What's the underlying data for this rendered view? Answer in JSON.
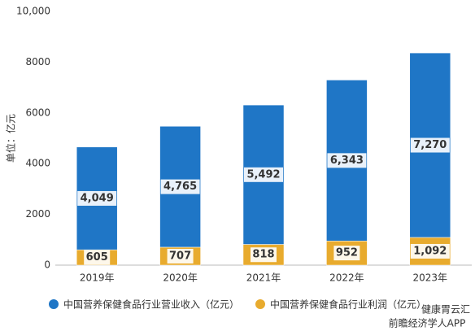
{
  "chart_data": {
    "type": "stacked-bar",
    "y_label": "单位：亿元",
    "categories": [
      "2019年",
      "2020年",
      "2021年",
      "2022年",
      "2023年"
    ],
    "series": [
      {
        "name": "中国营养保健食品行业营业收入（亿元）",
        "color": "#1f76c6",
        "values": [
          4049,
          4765,
          5492,
          6343,
          7270
        ],
        "value_labels": [
          "4,049",
          "4,765",
          "5,492",
          "6,343",
          "7,270"
        ]
      },
      {
        "name": "中国营养保健食品行业利润（亿元）",
        "color": "#e8ab2e",
        "values": [
          605,
          707,
          818,
          952,
          1092
        ],
        "value_labels": [
          "605",
          "707",
          "818",
          "952",
          "1,092"
        ]
      }
    ],
    "ylim": [
      0,
      10000
    ],
    "yticks": [
      0,
      2000,
      4000,
      6000,
      8000,
      {
        "value": 10000,
        "label": "10,000"
      }
    ],
    "grid": false,
    "legend": "bottom",
    "annotations": [
      "健康胃云汇",
      "前瞻经济学人APP"
    ]
  }
}
